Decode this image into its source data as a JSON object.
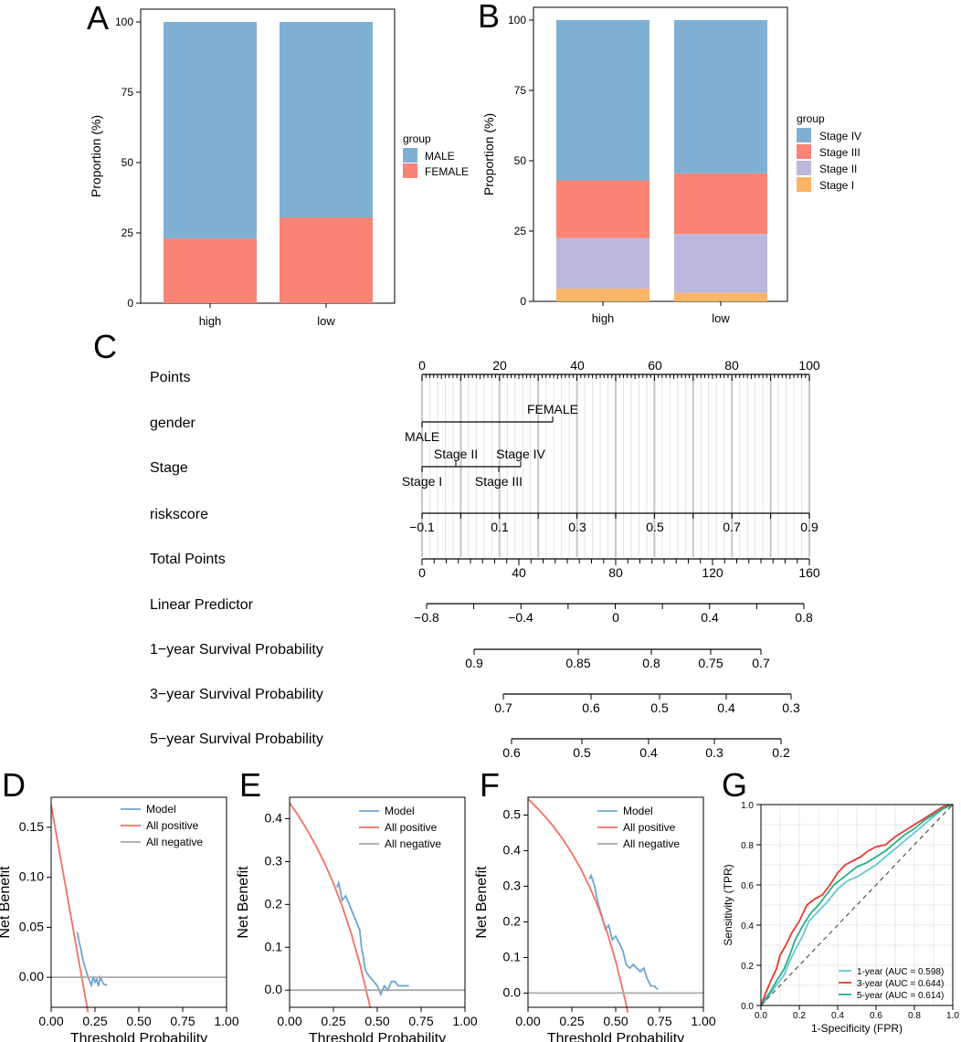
{
  "colors": {
    "male": "#7fb0d4",
    "female": "#f98375",
    "stage4": "#7fb0d4",
    "stage3": "#f98375",
    "stage2": "#bcb8db",
    "stage1": "#fcb466",
    "model": "#6fa4d0",
    "all_positive": "#f46f63",
    "all_negative": "#a9a9a9",
    "roc1": "#66c7d6",
    "roc3": "#e8392e",
    "roc5": "#27ae8a",
    "diag": "#555555"
  },
  "panel_letters": [
    "A",
    "B",
    "C",
    "D",
    "E",
    "F",
    "G"
  ],
  "chart_data": [
    {
      "id": "A",
      "type": "bar",
      "stacked": true,
      "categories": [
        "high",
        "low"
      ],
      "series": [
        {
          "name": "FEMALE",
          "values": [
            23,
            30.5
          ]
        },
        {
          "name": "MALE",
          "values": [
            77,
            69.5
          ]
        }
      ],
      "ylabel": "Proportion (%)",
      "xlabel": "",
      "yticks": [
        "0",
        "25",
        "50",
        "75",
        "100"
      ],
      "ylim": [
        0,
        100
      ],
      "legend_title": "group",
      "legend": [
        "MALE",
        "FEMALE"
      ],
      "legend_position": "right"
    },
    {
      "id": "B",
      "type": "bar",
      "stacked": true,
      "categories": [
        "high",
        "low"
      ],
      "series": [
        {
          "name": "Stage I",
          "values": [
            4.5,
            3
          ]
        },
        {
          "name": "Stage II",
          "values": [
            18,
            21
          ]
        },
        {
          "name": "Stage III",
          "values": [
            20.5,
            21.5
          ]
        },
        {
          "name": "Stage IV",
          "values": [
            57,
            54.5
          ]
        }
      ],
      "ylabel": "Proportion (%)",
      "xlabel": "",
      "yticks": [
        "0",
        "25",
        "50",
        "75",
        "100"
      ],
      "ylim": [
        0,
        100
      ],
      "legend_title": "group",
      "legend": [
        "Stage IV",
        "Stage III",
        "Stage II",
        "Stage I"
      ],
      "legend_position": "right"
    },
    {
      "id": "C",
      "type": "nomogram",
      "rows": [
        {
          "label": "Points",
          "axis": {
            "ticks": [
              "0",
              "20",
              "40",
              "60",
              "80",
              "100"
            ]
          }
        },
        {
          "label": "gender",
          "levels": [
            "FEMALE",
            "MALE"
          ]
        },
        {
          "label": "Stage",
          "levels": [
            "Stage II",
            "Stage IV",
            "Stage I",
            "Stage III"
          ]
        },
        {
          "label": "riskscore",
          "axis": {
            "ticks": [
              "−0.1",
              "0.1",
              "0.3",
              "0.5",
              "0.7",
              "0.9"
            ]
          }
        },
        {
          "label": "Total Points",
          "axis": {
            "ticks": [
              "0",
              "40",
              "80",
              "120",
              "160"
            ]
          }
        },
        {
          "label": "Linear Predictor",
          "axis": {
            "ticks": [
              "−0.8",
              "−0.4",
              "0",
              "0.4",
              "0.8"
            ]
          }
        },
        {
          "label": "1−year Survival Probability",
          "axis": {
            "ticks": [
              "0.9",
              "0.85",
              "0.8",
              "0.75",
              "0.7"
            ]
          }
        },
        {
          "label": "3−year Survival Probability",
          "axis": {
            "ticks": [
              "0.7",
              "0.6",
              "0.5",
              "0.4",
              "0.3"
            ]
          }
        },
        {
          "label": "5−year Survival Probability",
          "axis": {
            "ticks": [
              "0.6",
              "0.5",
              "0.4",
              "0.3",
              "0.2"
            ]
          }
        }
      ]
    },
    {
      "id": "D",
      "type": "line",
      "xlabel": "Threshold Probability",
      "ylabel": "Net Benefit",
      "xlim": [
        0,
        1
      ],
      "ylim": [
        -0.03,
        0.18
      ],
      "xticks": [
        "0.00",
        "0.25",
        "0.50",
        "0.75",
        "1.00"
      ],
      "yticks": [
        {
          "v": 0.0,
          "t": "0.00"
        },
        {
          "v": 0.05,
          "t": "0.05"
        },
        {
          "v": 0.1,
          "t": "0.10"
        },
        {
          "v": 0.15,
          "t": "0.15"
        }
      ],
      "legend": [
        "Model",
        "All positive",
        "All negative"
      ],
      "series": [
        {
          "name": "Model",
          "x": [
            0.15,
            0.16,
            0.17,
            0.18,
            0.19,
            0.2,
            0.21,
            0.22,
            0.23,
            0.24,
            0.25,
            0.26,
            0.27,
            0.28,
            0.3,
            0.32
          ],
          "y": [
            0.045,
            0.035,
            0.028,
            0.018,
            0.012,
            0.006,
            0.001,
            -0.004,
            -0.008,
            0.001,
            -0.005,
            -0.002,
            -0.009,
            0.0,
            -0.007,
            -0.008
          ]
        },
        {
          "name": "All positive",
          "x": [
            0.0,
            0.21
          ],
          "y": [
            0.172,
            -0.035
          ]
        },
        {
          "name": "All negative",
          "x": [
            0.0,
            1.0
          ],
          "y": [
            0.0,
            0.0
          ]
        }
      ]
    },
    {
      "id": "E",
      "type": "line",
      "xlabel": "Threshold Probability",
      "ylabel": "Net Benefit",
      "xlim": [
        0,
        1
      ],
      "ylim": [
        -0.04,
        0.45
      ],
      "xticks": [
        "0.00",
        "0.25",
        "0.50",
        "0.75",
        "1.00"
      ],
      "yticks": [
        {
          "v": 0.0,
          "t": "0.0"
        },
        {
          "v": 0.1,
          "t": "0.1"
        },
        {
          "v": 0.2,
          "t": "0.2"
        },
        {
          "v": 0.3,
          "t": "0.3"
        },
        {
          "v": 0.4,
          "t": "0.4"
        }
      ],
      "legend": [
        "Model",
        "All positive",
        "All negative"
      ],
      "series": [
        {
          "name": "Model",
          "x": [
            0.27,
            0.28,
            0.3,
            0.32,
            0.35,
            0.37,
            0.38,
            0.4,
            0.41,
            0.42,
            0.43,
            0.44,
            0.46,
            0.48,
            0.5,
            0.52,
            0.54,
            0.56,
            0.58,
            0.6,
            0.62,
            0.65,
            0.68
          ],
          "y": [
            0.24,
            0.25,
            0.21,
            0.22,
            0.19,
            0.17,
            0.16,
            0.14,
            0.1,
            0.08,
            0.05,
            0.04,
            0.03,
            0.02,
            0.01,
            -0.01,
            0.01,
            0.0,
            0.02,
            0.02,
            0.01,
            0.01,
            0.01
          ]
        },
        {
          "name": "All positive",
          "x": [
            0.0,
            0.05,
            0.1,
            0.15,
            0.2,
            0.25,
            0.3,
            0.35,
            0.4,
            0.45,
            0.46
          ],
          "y": [
            0.437,
            0.407,
            0.374,
            0.337,
            0.296,
            0.249,
            0.196,
            0.134,
            0.062,
            -0.023,
            -0.042
          ]
        },
        {
          "name": "All negative",
          "x": [
            0.0,
            1.0
          ],
          "y": [
            0.0,
            0.0
          ]
        }
      ]
    },
    {
      "id": "F",
      "type": "line",
      "xlabel": "Threshold Probability",
      "ylabel": "Net Benefit",
      "xlim": [
        0,
        1
      ],
      "ylim": [
        -0.04,
        0.55
      ],
      "xticks": [
        "0.00",
        "0.25",
        "0.50",
        "0.75",
        "1.00"
      ],
      "yticks": [
        {
          "v": 0.0,
          "t": "0.0"
        },
        {
          "v": 0.1,
          "t": "0.1"
        },
        {
          "v": 0.2,
          "t": "0.2"
        },
        {
          "v": 0.3,
          "t": "0.3"
        },
        {
          "v": 0.4,
          "t": "0.4"
        },
        {
          "v": 0.5,
          "t": "0.5"
        }
      ],
      "legend": [
        "Model",
        "All positive",
        "All negative"
      ],
      "series": [
        {
          "name": "Model",
          "x": [
            0.35,
            0.36,
            0.38,
            0.4,
            0.42,
            0.44,
            0.46,
            0.48,
            0.5,
            0.52,
            0.54,
            0.56,
            0.58,
            0.6,
            0.62,
            0.64,
            0.66,
            0.68,
            0.7,
            0.72,
            0.74
          ],
          "y": [
            0.32,
            0.33,
            0.3,
            0.25,
            0.22,
            0.18,
            0.19,
            0.15,
            0.16,
            0.14,
            0.12,
            0.08,
            0.07,
            0.08,
            0.07,
            0.06,
            0.07,
            0.04,
            0.02,
            0.02,
            0.01
          ]
        },
        {
          "name": "All positive",
          "x": [
            0.0,
            0.05,
            0.1,
            0.15,
            0.2,
            0.25,
            0.3,
            0.35,
            0.4,
            0.45,
            0.5,
            0.55,
            0.57
          ],
          "y": [
            0.545,
            0.521,
            0.494,
            0.465,
            0.431,
            0.393,
            0.35,
            0.3,
            0.242,
            0.173,
            0.09,
            -0.011,
            -0.055
          ]
        },
        {
          "name": "All negative",
          "x": [
            0.0,
            1.0
          ],
          "y": [
            0.0,
            0.0
          ]
        }
      ]
    },
    {
      "id": "G",
      "type": "line",
      "xlabel": "1-Specificity (FPR)",
      "ylabel": "Sensitivity (TPR)",
      "xlim": [
        0,
        1
      ],
      "ylim": [
        0,
        1
      ],
      "xticks": [
        "0.0",
        "0.2",
        "0.4",
        "0.6",
        "0.8",
        "1.0"
      ],
      "yticks": [
        {
          "v": 0.0,
          "t": "0.0"
        },
        {
          "v": 0.2,
          "t": "0.2"
        },
        {
          "v": 0.4,
          "t": "0.4"
        },
        {
          "v": 0.6,
          "t": "0.6"
        },
        {
          "v": 0.8,
          "t": "0.8"
        },
        {
          "v": 1.0,
          "t": "1.0"
        }
      ],
      "legend": [
        "1-year (AUC = 0.598)",
        "3-year (AUC = 0.644)",
        "5-year (AUC = 0.614)"
      ],
      "legend_position": "bottom-right",
      "series": [
        {
          "name": "1-year (AUC = 0.598)",
          "x": [
            0,
            0.02,
            0.05,
            0.08,
            0.12,
            0.15,
            0.18,
            0.22,
            0.25,
            0.3,
            0.35,
            0.4,
            0.45,
            0.5,
            0.55,
            0.6,
            0.65,
            0.7,
            0.75,
            0.8,
            0.85,
            0.9,
            0.95,
            1.0
          ],
          "y": [
            0,
            0.02,
            0.06,
            0.1,
            0.15,
            0.22,
            0.28,
            0.35,
            0.42,
            0.47,
            0.52,
            0.58,
            0.62,
            0.64,
            0.67,
            0.7,
            0.74,
            0.78,
            0.82,
            0.86,
            0.9,
            0.94,
            0.98,
            1.0
          ]
        },
        {
          "name": "3-year (AUC = 0.644)",
          "x": [
            0,
            0.02,
            0.05,
            0.08,
            0.1,
            0.13,
            0.16,
            0.2,
            0.24,
            0.28,
            0.32,
            0.36,
            0.4,
            0.44,
            0.48,
            0.52,
            0.56,
            0.6,
            0.65,
            0.7,
            0.75,
            0.8,
            0.85,
            0.9,
            0.95,
            1.0
          ],
          "y": [
            0,
            0.05,
            0.12,
            0.18,
            0.25,
            0.3,
            0.36,
            0.42,
            0.5,
            0.53,
            0.55,
            0.6,
            0.66,
            0.7,
            0.72,
            0.74,
            0.77,
            0.79,
            0.8,
            0.84,
            0.87,
            0.9,
            0.93,
            0.96,
            0.99,
            1.0
          ]
        },
        {
          "name": "5-year (AUC = 0.614)",
          "x": [
            0,
            0.02,
            0.05,
            0.08,
            0.12,
            0.15,
            0.18,
            0.22,
            0.26,
            0.3,
            0.34,
            0.38,
            0.42,
            0.46,
            0.5,
            0.55,
            0.6,
            0.65,
            0.7,
            0.75,
            0.8,
            0.85,
            0.9,
            0.95,
            1.0
          ],
          "y": [
            0,
            0.03,
            0.07,
            0.12,
            0.18,
            0.25,
            0.33,
            0.4,
            0.46,
            0.5,
            0.55,
            0.6,
            0.63,
            0.66,
            0.69,
            0.71,
            0.74,
            0.77,
            0.81,
            0.85,
            0.88,
            0.92,
            0.95,
            0.98,
            1.0
          ]
        },
        {
          "name": "diagonal",
          "x": [
            0,
            1
          ],
          "y": [
            0,
            1
          ]
        }
      ]
    }
  ]
}
